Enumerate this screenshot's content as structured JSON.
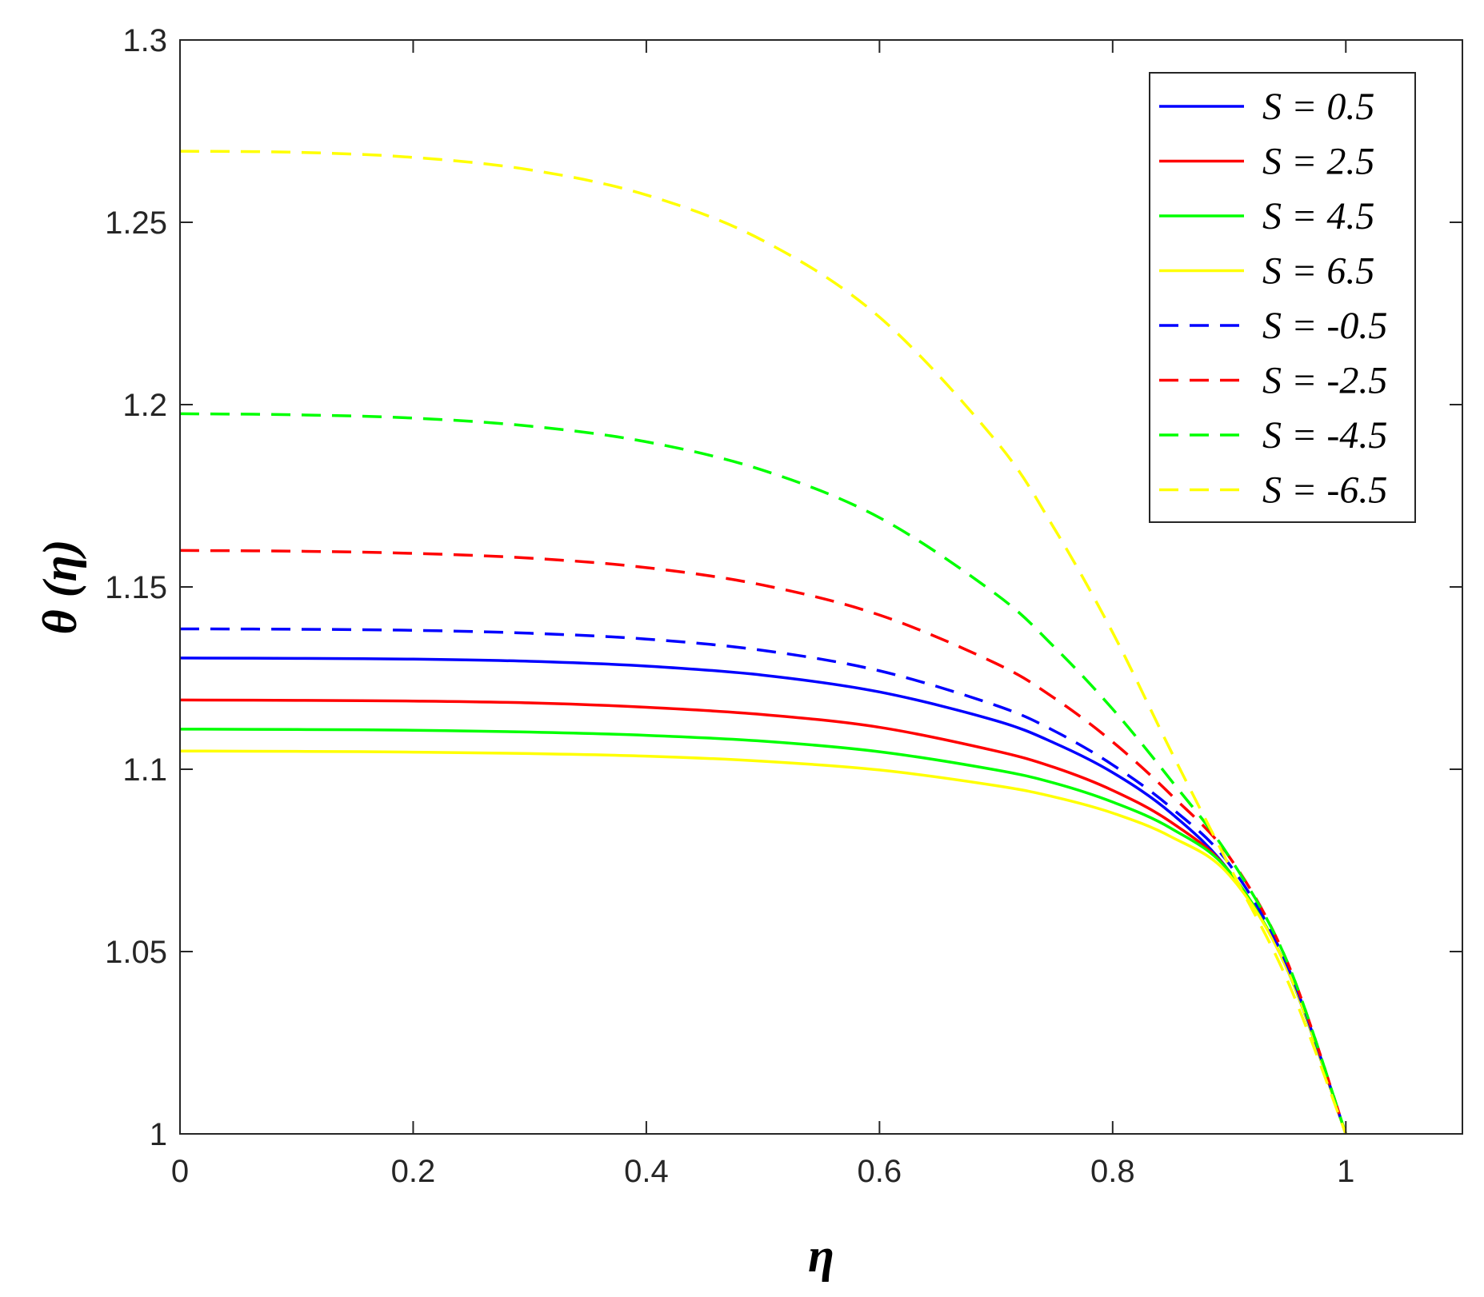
{
  "chart_data": {
    "type": "line",
    "title": "",
    "xlabel": "η",
    "ylabel": "θ (η)",
    "xlim": [
      0,
      1.1
    ],
    "ylim": [
      1,
      1.3
    ],
    "x_ticks": [
      0,
      0.2,
      0.4,
      0.6,
      0.8,
      1
    ],
    "x_tick_labels": [
      "0",
      "0.2",
      "0.4",
      "0.6",
      "0.8",
      "1"
    ],
    "y_ticks": [
      1,
      1.05,
      1.1,
      1.15,
      1.2,
      1.25,
      1.3
    ],
    "y_tick_labels": [
      "1",
      "1.05",
      "1.1",
      "1.15",
      "1.2",
      "1.25",
      "1.3"
    ],
    "grid": false,
    "legend_position": "top-right",
    "x": [
      0,
      0.1,
      0.2,
      0.3,
      0.4,
      0.5,
      0.6,
      0.7,
      0.75,
      0.8,
      0.85,
      0.9,
      0.95,
      1.0
    ],
    "series": [
      {
        "name": "S = 0.5",
        "color": "#0000ff",
        "dash": "solid",
        "values": [
          1.1305,
          1.1304,
          1.1302,
          1.1296,
          1.1283,
          1.1258,
          1.1212,
          1.1133,
          1.1072,
          1.0991,
          1.088,
          1.072,
          1.045,
          1.0
        ]
      },
      {
        "name": "S = 2.5",
        "color": "#ff0000",
        "dash": "solid",
        "values": [
          1.119,
          1.1189,
          1.1187,
          1.1182,
          1.117,
          1.115,
          1.1115,
          1.105,
          1.1005,
          1.0942,
          1.0855,
          1.072,
          1.045,
          1.0
        ]
      },
      {
        "name": "S = 4.5",
        "color": "#00ff00",
        "dash": "solid",
        "values": [
          1.111,
          1.1109,
          1.1107,
          1.1102,
          1.1093,
          1.1077,
          1.1048,
          1.0998,
          1.0962,
          1.091,
          1.0838,
          1.072,
          1.045,
          1.0
        ]
      },
      {
        "name": "S = 6.5",
        "color": "#ffff00",
        "dash": "solid",
        "values": [
          1.105,
          1.1049,
          1.1047,
          1.1043,
          1.1036,
          1.1022,
          1.0998,
          1.0955,
          1.0924,
          1.088,
          1.0815,
          1.071,
          1.045,
          1.0
        ]
      },
      {
        "name": "S = -0.5",
        "color": "#0000ff",
        "dash": "dashed",
        "values": [
          1.1385,
          1.1384,
          1.1381,
          1.1373,
          1.1357,
          1.1326,
          1.127,
          1.1175,
          1.1105,
          1.1012,
          1.0895,
          1.074,
          1.046,
          1.0
        ]
      },
      {
        "name": "S = -2.5",
        "color": "#ff0000",
        "dash": "dashed",
        "values": [
          1.16,
          1.1598,
          1.1592,
          1.1579,
          1.1553,
          1.1505,
          1.1423,
          1.129,
          1.1195,
          1.1075,
          1.093,
          1.076,
          1.047,
          1.0
        ]
      },
      {
        "name": "S = -4.5",
        "color": "#00ff00",
        "dash": "dashed",
        "values": [
          1.1975,
          1.1972,
          1.1963,
          1.1941,
          1.1898,
          1.182,
          1.169,
          1.148,
          1.1335,
          1.1165,
          1.097,
          1.076,
          1.047,
          1.0
        ]
      },
      {
        "name": "S = -6.5",
        "color": "#ffff00",
        "dash": "dashed",
        "values": [
          1.2695,
          1.2692,
          1.2678,
          1.2644,
          1.2575,
          1.245,
          1.224,
          1.19,
          1.166,
          1.1375,
          1.105,
          1.0735,
          1.042,
          1.0
        ]
      }
    ]
  }
}
